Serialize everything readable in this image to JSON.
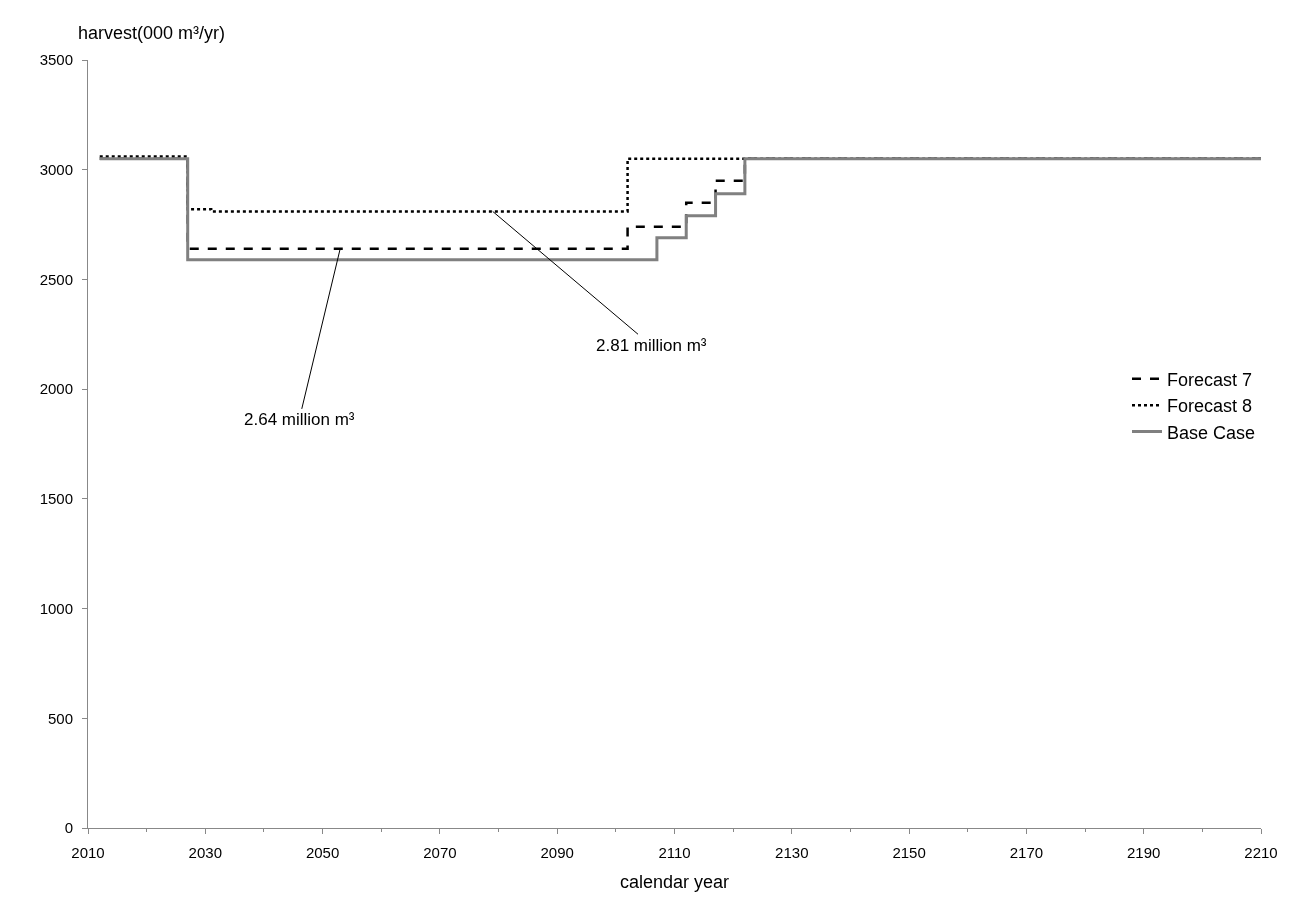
{
  "chart_data": {
    "type": "step",
    "xlabel": "calendar year",
    "ylabel": "harvest(000 m³/yr)",
    "xlim": [
      2010,
      2210
    ],
    "xticks": [
      2010,
      2030,
      2050,
      2070,
      2090,
      2110,
      2130,
      2150,
      2170,
      2190,
      2210
    ],
    "ylim": [
      0,
      3500
    ],
    "yticks": [
      0,
      500,
      1000,
      1500,
      2000,
      2500,
      3000,
      3500
    ],
    "legend": "right",
    "marker": "none",
    "series": [
      {
        "name": "Forecast 7",
        "color": "#000000",
        "line_style": "dashed",
        "x": [
          2012,
          2027,
          2102,
          2112,
          2117,
          2122,
          2210
        ],
        "values": [
          3050,
          2640,
          2740,
          2850,
          2950,
          3050,
          3050
        ]
      },
      {
        "name": "Forecast 8",
        "color": "#000000",
        "line_style": "dotted",
        "x": [
          2012,
          2027,
          2031,
          2102,
          2122,
          2210
        ],
        "values": [
          3060,
          2820,
          2810,
          3050,
          3050,
          3050
        ]
      },
      {
        "name": "Base Case",
        "color": "#808080",
        "line_style": "solid",
        "x": [
          2012,
          2027,
          2107,
          2112,
          2117,
          2122,
          2210
        ],
        "values": [
          3050,
          2590,
          2690,
          2790,
          2890,
          3050,
          3050
        ]
      }
    ],
    "annotations": [
      {
        "text": "2.64 million m³",
        "x": 2053,
        "y": 2640
      },
      {
        "text": "2.81 million m³",
        "x": 2079,
        "y": 2810
      }
    ]
  }
}
